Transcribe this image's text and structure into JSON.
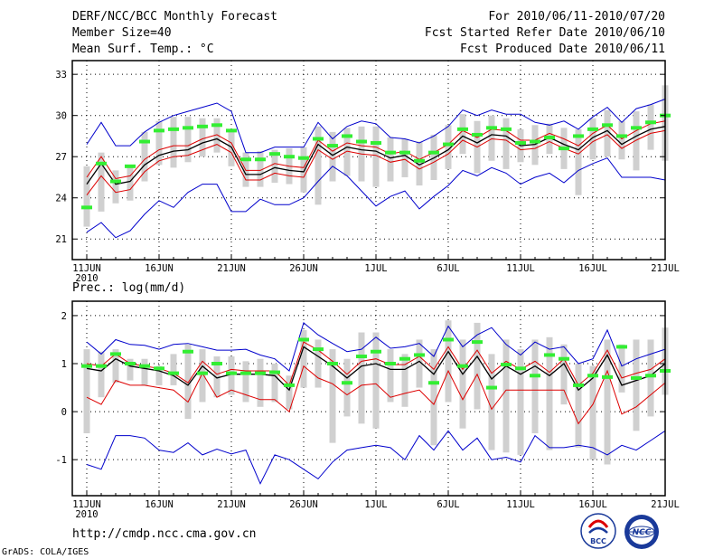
{
  "header": {
    "title": "DERF/NCC/BCC Monthly Forecast",
    "member_size": "Member Size=40",
    "variable1": "Mean Surf. Temp.: °C",
    "period": "For 2010/06/11-2010/07/20",
    "start_date": "Fcst Started Refer Date 2010/06/10",
    "produced_date": "Fcst Produced Date 2010/06/11"
  },
  "panel2_label": "Prec.: log(mm/d)",
  "footer": {
    "url": "http://cmdp.ncc.cma.gov.cn",
    "grads": "GrADS: COLA/IGES",
    "logo1_text": "BCC",
    "logo2_text": "NCC"
  },
  "colors": {
    "max_min": "#0000cc",
    "spread": "#dd0000",
    "mean": "#000000",
    "obs": "#33ee33",
    "box": "#d0d0d0"
  },
  "chart_data": [
    {
      "type": "line",
      "title": "Mean Surf. Temp.: °C",
      "ylim": [
        19.5,
        34
      ],
      "yticks": [
        21,
        24,
        27,
        30,
        33
      ],
      "xlim": [
        0,
        41
      ],
      "xticks": [
        {
          "day": 1,
          "label": "11JUN"
        },
        {
          "day": 6,
          "label": "16JUN"
        },
        {
          "day": 11,
          "label": "21JUN"
        },
        {
          "day": 16,
          "label": "26JUN"
        },
        {
          "day": 21,
          "label": "1JUL"
        },
        {
          "day": 26,
          "label": "6JUL"
        },
        {
          "day": 31,
          "label": "11JUL"
        },
        {
          "day": 36,
          "label": "16JUL"
        },
        {
          "day": 41,
          "label": "21JUL"
        }
      ],
      "year_label": "2010",
      "grid": true,
      "series": [
        {
          "name": "max",
          "values": [
            27.9,
            29.5,
            27.8,
            27.8,
            28.8,
            29.5,
            30.0,
            30.3,
            30.6,
            30.9,
            30.3,
            27.3,
            27.3,
            27.7,
            27.7,
            27.7,
            29.5,
            28.3,
            29.2,
            29.6,
            29.4,
            28.4,
            28.3,
            28.0,
            28.5,
            29.2,
            30.4,
            30.0,
            30.4,
            30.1,
            30.1,
            29.5,
            29.3,
            29.6,
            29.0,
            29.9,
            30.6,
            29.5,
            30.5,
            30.8,
            31.2
          ]
        },
        {
          "name": "min",
          "values": [
            21.5,
            22.2,
            21.1,
            21.6,
            22.8,
            23.8,
            23.3,
            24.4,
            25.0,
            25.0,
            23.0,
            23.0,
            23.9,
            23.5,
            23.5,
            24.0,
            25.2,
            26.3,
            25.6,
            24.5,
            23.4,
            24.1,
            24.5,
            23.2,
            24.1,
            24.9,
            26.0,
            25.6,
            26.2,
            25.8,
            25.0,
            25.5,
            25.8,
            25.1,
            26.0,
            26.5,
            26.9,
            25.5,
            25.5,
            25.5,
            25.3
          ]
        },
        {
          "name": "upper",
          "values": [
            25.5,
            27.0,
            25.4,
            25.6,
            26.8,
            27.5,
            27.8,
            27.8,
            28.3,
            28.6,
            28.0,
            26.0,
            26.0,
            26.5,
            26.3,
            26.2,
            28.2,
            27.4,
            28.0,
            27.8,
            27.7,
            27.2,
            27.4,
            26.8,
            27.3,
            27.9,
            28.9,
            28.4,
            29.0,
            28.9,
            28.2,
            28.2,
            28.7,
            28.3,
            27.8,
            28.7,
            29.3,
            28.3,
            28.9,
            29.4,
            29.6
          ]
        },
        {
          "name": "mean",
          "values": [
            25.0,
            26.5,
            25.0,
            25.2,
            26.4,
            27.1,
            27.4,
            27.5,
            28.0,
            28.3,
            27.7,
            25.7,
            25.7,
            26.2,
            26.0,
            25.9,
            27.9,
            27.1,
            27.7,
            27.5,
            27.4,
            26.9,
            27.1,
            26.4,
            26.9,
            27.5,
            28.5,
            28.0,
            28.6,
            28.5,
            27.8,
            27.9,
            28.4,
            27.9,
            27.5,
            28.4,
            28.9,
            27.9,
            28.5,
            29.0,
            29.2
          ]
        },
        {
          "name": "lower",
          "values": [
            24.2,
            25.6,
            24.4,
            24.6,
            25.9,
            26.7,
            27.0,
            27.1,
            27.5,
            27.9,
            27.3,
            25.3,
            25.3,
            25.8,
            25.6,
            25.5,
            27.5,
            26.8,
            27.4,
            27.2,
            27.1,
            26.6,
            26.8,
            26.1,
            26.6,
            27.2,
            28.2,
            27.7,
            28.3,
            28.2,
            27.5,
            27.6,
            28.1,
            27.6,
            27.2,
            28.1,
            28.6,
            27.6,
            28.2,
            28.7,
            28.9
          ]
        },
        {
          "name": "obs",
          "values": [
            23.3,
            26.5,
            25.2,
            26.3,
            28.1,
            28.9,
            29.0,
            29.1,
            29.2,
            29.3,
            28.9,
            26.8,
            26.8,
            27.2,
            27.0,
            26.9,
            28.3,
            27.8,
            28.5,
            28.1,
            28.0,
            27.3,
            27.3,
            26.7,
            27.3,
            27.9,
            29.0,
            28.6,
            29.1,
            29.0,
            28.0,
            28.1,
            28.4,
            27.6,
            28.5,
            29.0,
            29.3,
            28.5,
            29.1,
            29.5,
            30.0
          ]
        },
        {
          "name": "box_top",
          "values": [
            26.3,
            27.3,
            26.0,
            26.3,
            28.8,
            29.6,
            29.9,
            29.9,
            29.8,
            29.8,
            28.8,
            27.3,
            27.4,
            27.5,
            27.6,
            27.7,
            29.2,
            28.8,
            29.1,
            29.2,
            29.2,
            28.4,
            28.3,
            28.1,
            28.6,
            29.3,
            30.1,
            29.6,
            30.0,
            29.8,
            29.0,
            29.3,
            29.4,
            29.1,
            29.0,
            29.8,
            30.4,
            29.6,
            30.3,
            30.8,
            32.2
          ]
        },
        {
          "name": "box_bottom",
          "values": [
            21.9,
            23.0,
            23.6,
            23.8,
            25.2,
            26.4,
            26.2,
            26.6,
            27.0,
            27.3,
            26.3,
            24.8,
            24.8,
            25.1,
            25.0,
            24.4,
            23.5,
            25.2,
            25.6,
            25.2,
            24.8,
            25.2,
            25.5,
            24.9,
            25.3,
            26.1,
            27.2,
            25.8,
            26.7,
            26.1,
            26.6,
            26.4,
            27.2,
            26.1,
            24.2,
            26.8,
            27.0,
            26.8,
            26.0,
            27.5,
            26.7
          ]
        }
      ]
    },
    {
      "type": "line",
      "title": "Prec.: log(mm/d)",
      "ylim": [
        -1.75,
        2.3
      ],
      "yticks": [
        -1,
        0,
        1,
        2
      ],
      "xlim": [
        0,
        41
      ],
      "xticks": [
        {
          "day": 1,
          "label": "11JUN"
        },
        {
          "day": 6,
          "label": "16JUN"
        },
        {
          "day": 11,
          "label": "21JUN"
        },
        {
          "day": 16,
          "label": "26JUN"
        },
        {
          "day": 21,
          "label": "1JUL"
        },
        {
          "day": 26,
          "label": "6JUL"
        },
        {
          "day": 31,
          "label": "11JUL"
        },
        {
          "day": 36,
          "label": "16JUL"
        },
        {
          "day": 41,
          "label": "21JUL"
        }
      ],
      "year_label": "2010",
      "grid": true,
      "series": [
        {
          "name": "max",
          "values": [
            1.45,
            1.2,
            1.5,
            1.4,
            1.38,
            1.3,
            1.4,
            1.42,
            1.35,
            1.28,
            1.28,
            1.3,
            1.18,
            1.1,
            0.85,
            1.85,
            1.6,
            1.42,
            1.25,
            1.3,
            1.55,
            1.32,
            1.35,
            1.42,
            1.15,
            1.78,
            1.35,
            1.6,
            1.75,
            1.4,
            1.18,
            1.45,
            1.3,
            1.35,
            1.0,
            1.1,
            1.7,
            0.95,
            1.1,
            1.2,
            1.3
          ]
        },
        {
          "name": "min",
          "values": [
            -1.1,
            -1.2,
            -0.5,
            -0.5,
            -0.55,
            -0.8,
            -0.85,
            -0.65,
            -0.9,
            -0.78,
            -0.88,
            -0.8,
            -1.5,
            -0.9,
            -1.0,
            -1.2,
            -1.4,
            -1.05,
            -0.8,
            -0.75,
            -0.7,
            -0.75,
            -1.0,
            -0.5,
            -0.8,
            -0.4,
            -0.8,
            -0.55,
            -1.0,
            -0.95,
            -1.05,
            -0.5,
            -0.75,
            -0.75,
            -0.7,
            -0.75,
            -0.9,
            -0.7,
            -0.8,
            -0.6,
            -0.4
          ]
        },
        {
          "name": "upper",
          "values": [
            1.0,
            0.95,
            1.2,
            1.0,
            0.95,
            0.9,
            0.8,
            0.6,
            1.05,
            0.78,
            0.88,
            0.85,
            0.85,
            0.85,
            0.55,
            1.45,
            1.28,
            1.05,
            0.78,
            1.05,
            1.1,
            0.98,
            0.98,
            1.15,
            0.88,
            1.35,
            0.88,
            1.28,
            0.8,
            1.05,
            0.88,
            1.05,
            0.82,
            1.1,
            0.55,
            0.8,
            1.28,
            0.7,
            0.8,
            0.88,
            1.1
          ]
        },
        {
          "name": "mean",
          "values": [
            0.9,
            0.85,
            1.1,
            0.95,
            0.9,
            0.85,
            0.75,
            0.55,
            0.95,
            0.7,
            0.78,
            0.78,
            0.78,
            0.75,
            0.45,
            1.35,
            1.15,
            0.95,
            0.7,
            0.95,
            1.0,
            0.88,
            0.88,
            1.05,
            0.78,
            1.25,
            0.78,
            1.15,
            0.68,
            0.95,
            0.78,
            0.95,
            0.75,
            1.0,
            0.45,
            0.7,
            1.18,
            0.55,
            0.65,
            0.75,
            1.0
          ]
        },
        {
          "name": "lower",
          "values": [
            0.3,
            0.15,
            0.65,
            0.55,
            0.55,
            0.5,
            0.45,
            0.2,
            0.8,
            0.3,
            0.45,
            0.35,
            0.25,
            0.25,
            0.0,
            0.95,
            0.7,
            0.58,
            0.35,
            0.55,
            0.58,
            0.3,
            0.38,
            0.45,
            0.15,
            0.85,
            0.25,
            0.78,
            0.05,
            0.45,
            0.45,
            0.45,
            0.45,
            0.45,
            -0.25,
            0.15,
            0.85,
            -0.05,
            0.1,
            0.35,
            0.6
          ]
        },
        {
          "name": "obs",
          "values": [
            0.95,
            0.95,
            1.2,
            1.0,
            0.95,
            0.9,
            0.8,
            1.25,
            0.8,
            1.0,
            0.8,
            0.8,
            0.8,
            0.82,
            0.55,
            1.5,
            1.3,
            1.0,
            0.6,
            1.15,
            1.25,
            1.0,
            1.1,
            1.18,
            0.6,
            1.5,
            0.95,
            1.45,
            0.5,
            0.98,
            0.9,
            0.75,
            1.18,
            1.1,
            0.55,
            0.75,
            0.72,
            1.35,
            0.7,
            0.75,
            0.85
          ]
        },
        {
          "name": "box_top",
          "values": [
            1.3,
            1.25,
            1.3,
            1.1,
            1.1,
            0.95,
            1.2,
            1.4,
            1.3,
            1.15,
            1.15,
            1.05,
            1.1,
            1.0,
            0.75,
            1.7,
            1.5,
            1.3,
            1.1,
            1.65,
            1.65,
            1.3,
            1.2,
            1.5,
            1.3,
            1.9,
            1.5,
            1.85,
            1.2,
            1.5,
            1.3,
            1.5,
            1.55,
            1.4,
            1.0,
            0.95,
            1.5,
            1.4,
            1.5,
            1.5,
            1.75
          ]
        },
        {
          "name": "box_bottom",
          "values": [
            -0.45,
            0.3,
            0.6,
            0.65,
            0.55,
            0.55,
            0.55,
            -0.15,
            0.2,
            0.3,
            0.35,
            0.2,
            0.1,
            0.2,
            0.05,
            0.5,
            0.5,
            -0.65,
            -0.1,
            -0.25,
            -0.35,
            0.2,
            0.1,
            0.5,
            -0.7,
            0.2,
            -0.35,
            0.05,
            -0.8,
            -0.85,
            -0.9,
            -0.45,
            -0.8,
            0.15,
            -0.75,
            -1.0,
            -1.1,
            0.4,
            -0.4,
            -0.1,
            0.35
          ]
        }
      ]
    }
  ]
}
